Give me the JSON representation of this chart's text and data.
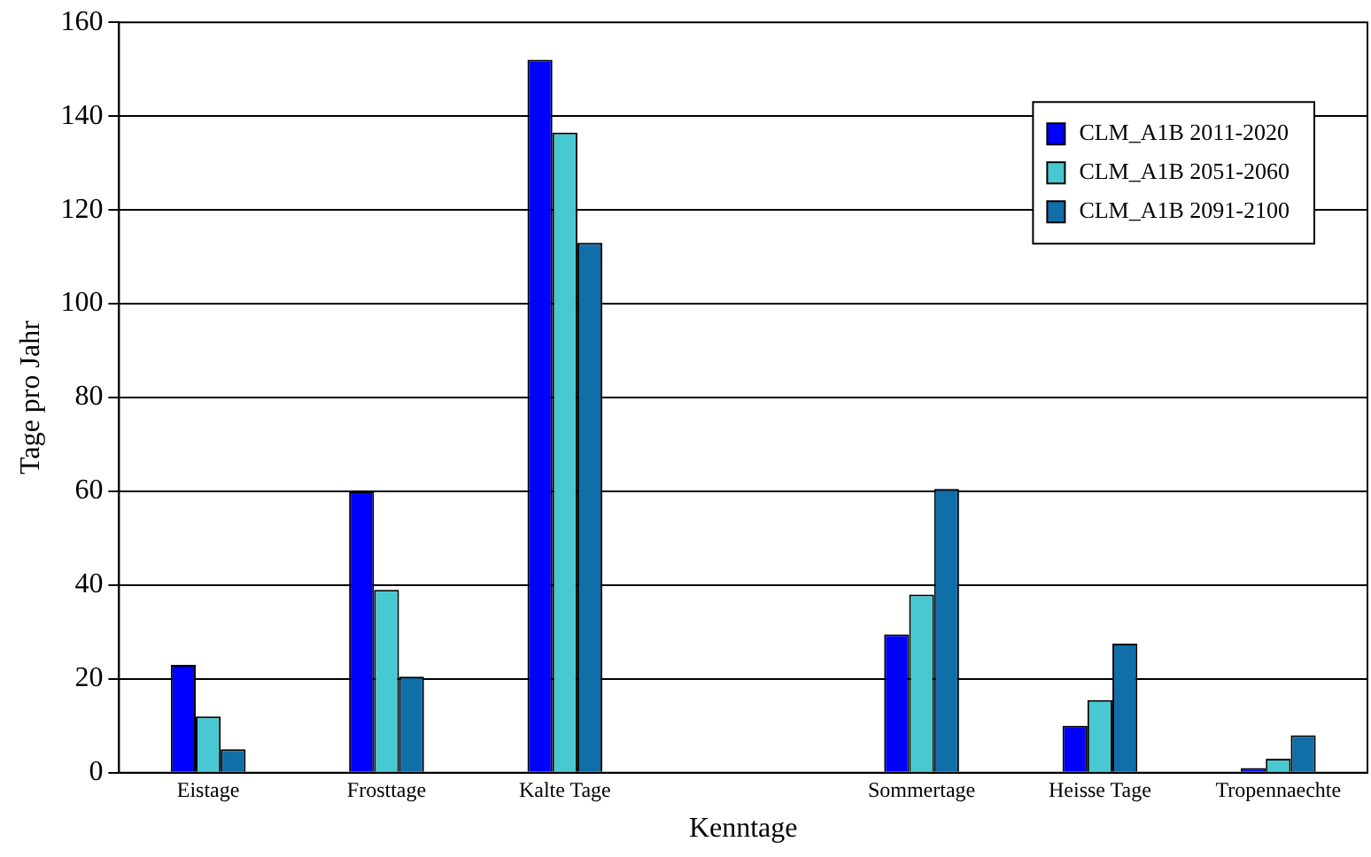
{
  "chart_data": {
    "type": "bar",
    "xlabel": "Kenntage",
    "ylabel": "Tage pro Jahr",
    "categories": [
      "Eistage",
      "Frosttage",
      "Kalte Tage",
      null,
      "Sommertage",
      "Heisse Tage",
      "Tropennaechte"
    ],
    "series": [
      {
        "name": "CLM_A1B 2011-2020",
        "color": "#0000ff",
        "values": [
          23,
          60,
          152,
          null,
          29.5,
          10,
          1
        ]
      },
      {
        "name": "CLM_A1B 2051-2060",
        "color": "#48c9d2",
        "values": [
          12,
          39,
          136.5,
          null,
          38,
          15.5,
          3
        ]
      },
      {
        "name": "CLM_A1B 2091-2100",
        "color": "#106ea9",
        "values": [
          5,
          20.5,
          113,
          null,
          60.5,
          27.5,
          8
        ]
      }
    ],
    "ylim": [
      0,
      160
    ],
    "yticks": [
      0,
      20,
      40,
      60,
      80,
      100,
      120,
      140,
      160
    ],
    "grid": "y",
    "legend": "top right"
  }
}
